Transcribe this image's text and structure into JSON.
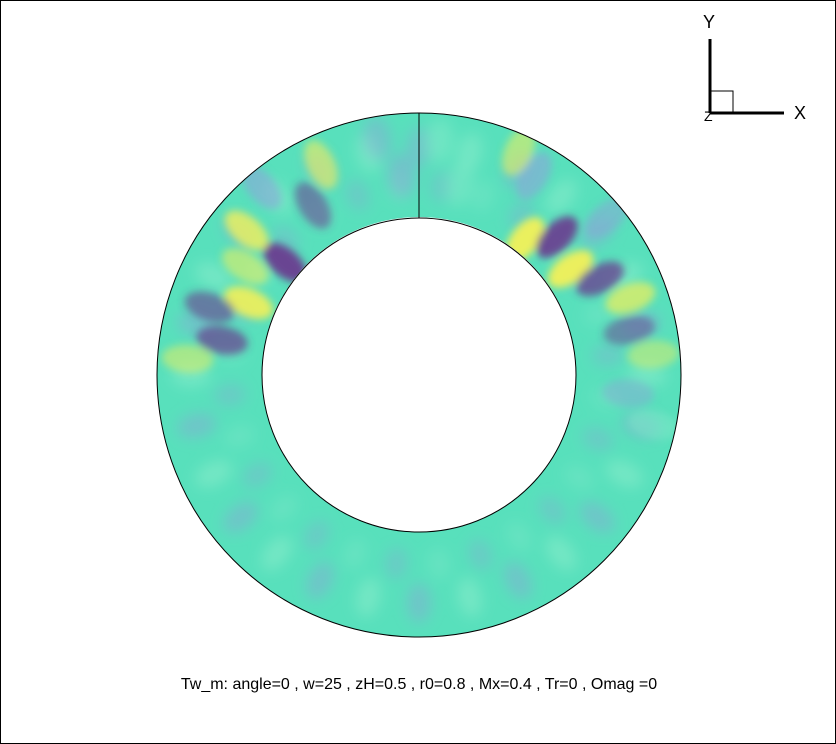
{
  "plot": {
    "caption": "Tw_m: angle=0 , w=25 , zH=0.5 , r0=0.8 , Mx=0.4 , Tr=0 , Omag =0"
  },
  "axes_triad": {
    "y_label": "Y",
    "x_label": "X",
    "z_label": "Z"
  },
  "colormap": {
    "base": "#58e0bc",
    "light": "#7fe9c8",
    "mid_blue": "#8aa6d8",
    "low": "#6a3b8f",
    "high": "#f2f05a"
  }
}
